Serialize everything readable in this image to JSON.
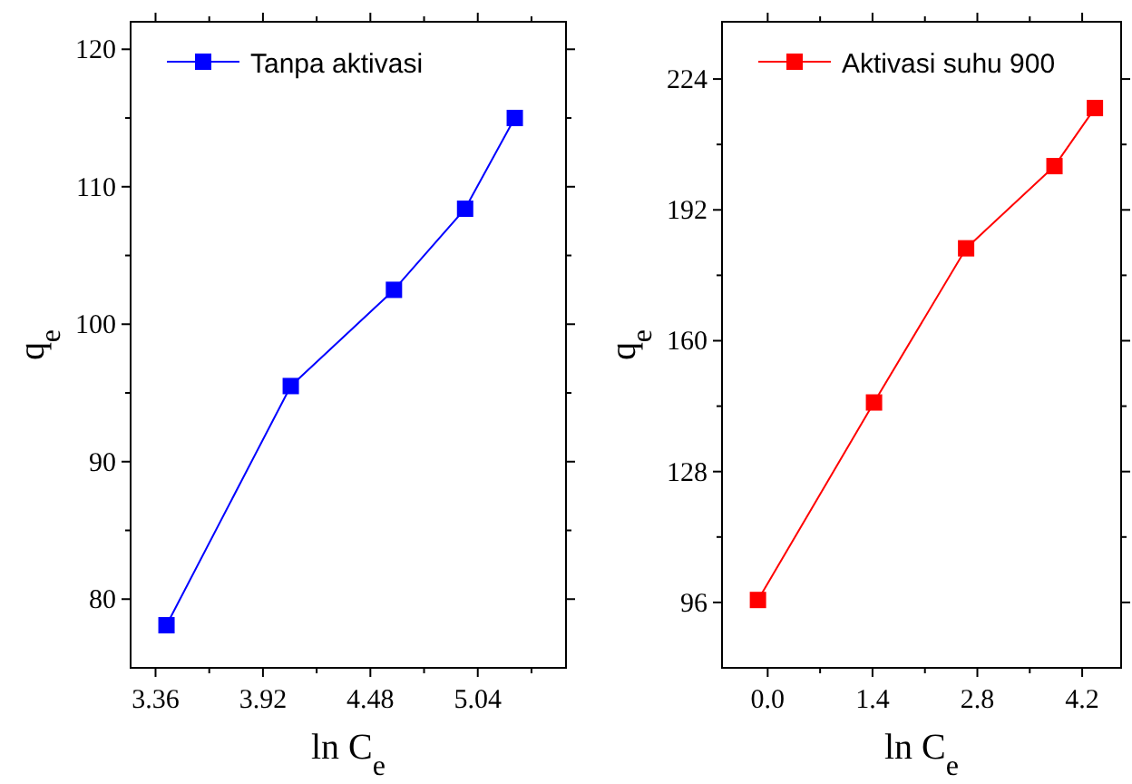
{
  "chart_data": [
    {
      "type": "line",
      "xlabel": "ln C$_{e}$",
      "ylabel": "q$_{e}$",
      "marker": "square",
      "legend": "top left",
      "grid": false,
      "xlim": [
        3.23,
        5.5
      ],
      "xticks": [
        3.36,
        {
          "value": 3.64,
          "label": null
        },
        3.92,
        {
          "value": 4.2,
          "label": null
        },
        4.48,
        {
          "value": 4.76,
          "label": null
        },
        5.04,
        {
          "value": 5.32,
          "label": null
        }
      ],
      "ylim": [
        75,
        122
      ],
      "yticks": [
        80,
        {
          "value": 85,
          "label": null
        },
        90,
        {
          "value": 95,
          "label": null
        },
        100,
        {
          "value": 105,
          "label": null
        },
        110,
        {
          "value": 115,
          "label": null
        },
        120
      ],
      "series": [
        {
          "name": "Tanpa aktivasi",
          "color": "#0000ff",
          "x": [
            3.417,
            4.065,
            4.603,
            4.974,
            5.233
          ],
          "values": [
            78.1,
            95.5,
            102.5,
            108.4,
            115.0
          ]
        }
      ]
    },
    {
      "type": "line",
      "xlabel": "ln C$_{e}$",
      "ylabel": "q$_{e}$",
      "marker": "square",
      "legend": "top left",
      "grid": false,
      "xlim": [
        -0.61,
        4.72
      ],
      "xticks": [
        {
          "value": 0,
          "label": "0.0"
        },
        {
          "value": 0.7,
          "label": null
        },
        1.4,
        {
          "value": 2.1,
          "label": null
        },
        2.8,
        {
          "value": 3.5,
          "label": null
        },
        4.2
      ],
      "ylim": [
        80,
        238
      ],
      "yticks": [
        96,
        {
          "value": 112,
          "label": null
        },
        128,
        {
          "value": 144,
          "label": null
        },
        160,
        {
          "value": 176,
          "label": null
        },
        192,
        {
          "value": 208,
          "label": null
        },
        224
      ],
      "series": [
        {
          "name": "Aktivasi suhu 900",
          "color": "#ff0000",
          "x": [
            -0.13,
            1.42,
            2.65,
            3.83,
            4.37
          ],
          "values": [
            96.6,
            144.9,
            182.6,
            202.7,
            216.9
          ]
        }
      ]
    }
  ]
}
